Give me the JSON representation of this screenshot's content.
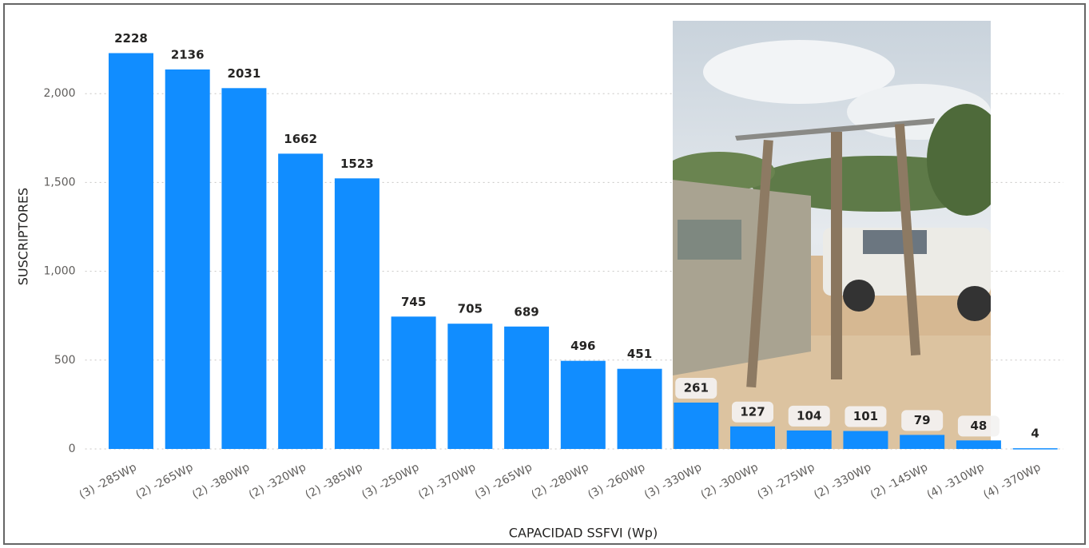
{
  "chart_data": {
    "type": "bar",
    "x_label": "CAPACIDAD SSFVI (Wp)",
    "y_label": "SUSCRIPTORES",
    "categories": [
      "(3) -285Wp",
      "(2) -265Wp",
      "(2) -380Wp",
      "(2) -320Wp",
      "(2) -385Wp",
      "(3) -250Wp",
      "(2) -370Wp",
      "(3) -265Wp",
      "(2) -280Wp",
      "(3) -260Wp",
      "(3) -330Wp",
      "(2) -300Wp",
      "(3) -275Wp",
      "(2) -330Wp",
      "(2) -145Wp",
      "(4) -310Wp",
      "(4) -370Wp"
    ],
    "values": [
      2228,
      2136,
      2031,
      1662,
      1523,
      745,
      705,
      689,
      496,
      451,
      261,
      127,
      104,
      101,
      79,
      48,
      4
    ],
    "color": "#118dff",
    "ylim": [
      0,
      2500
    ],
    "yticks": [
      0,
      500,
      {
        "value": 1000,
        "label": "1,000"
      },
      {
        "value": 1500,
        "label": "1,500"
      },
      {
        "value": 2000,
        "label": "2,000"
      }
    ],
    "grid": true
  }
}
